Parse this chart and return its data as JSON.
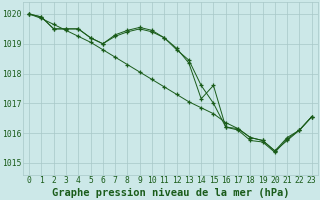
{
  "title": "Graphe pression niveau de la mer (hPa)",
  "x_hours": [
    0,
    1,
    2,
    3,
    4,
    5,
    6,
    7,
    8,
    9,
    10,
    11,
    12,
    13,
    14,
    15,
    16,
    17,
    18,
    19,
    20,
    21,
    22,
    23
  ],
  "y_straight": [
    1020.0,
    1019.85,
    1019.65,
    1019.45,
    1019.25,
    1019.05,
    1018.8,
    1018.55,
    1018.3,
    1018.05,
    1017.8,
    1017.55,
    1017.3,
    1017.05,
    1016.85,
    1016.65,
    1016.35,
    1016.15,
    1015.85,
    1015.75,
    1015.4,
    1015.75,
    1016.1,
    1016.55
  ],
  "y_upper": [
    1020.0,
    1019.9,
    1019.5,
    1019.5,
    1019.5,
    1019.2,
    1019.0,
    1019.3,
    1019.45,
    1019.55,
    1019.45,
    1019.2,
    1018.85,
    1018.35,
    1017.15,
    1017.6,
    1016.2,
    1016.15,
    1015.85,
    1015.75,
    1015.4,
    1015.85,
    1016.1,
    1016.55
  ],
  "y_lower": [
    1020.0,
    1019.9,
    1019.5,
    1019.5,
    1019.5,
    1019.2,
    1019.0,
    1019.25,
    1019.4,
    1019.5,
    1019.4,
    1019.2,
    1018.8,
    1018.45,
    1017.6,
    1017.0,
    1016.2,
    1016.1,
    1015.75,
    1015.7,
    1015.35,
    1015.8,
    1016.1,
    1016.55
  ],
  "ylim": [
    1014.6,
    1020.4
  ],
  "yticks": [
    1015,
    1016,
    1017,
    1018,
    1019,
    1020
  ],
  "line_color": "#1a5c1a",
  "bg_color": "#cce8e8",
  "grid_color": "#a8c8c8",
  "title_fontsize": 7.5,
  "tick_fontsize": 5.8
}
